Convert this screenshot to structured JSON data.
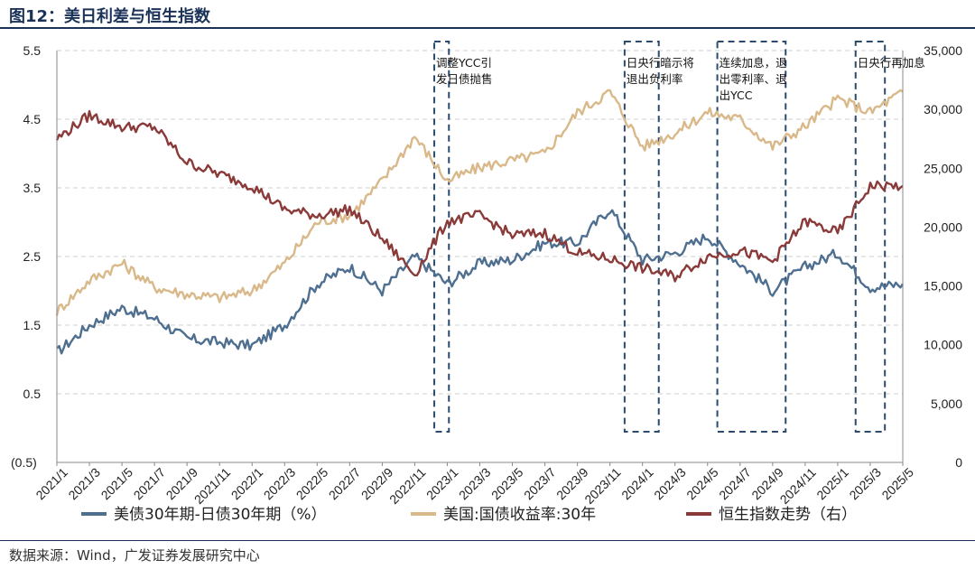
{
  "title": "图12：美日利差与恒生指数",
  "source": "数据来源：Wind，广发证券发展研究中心",
  "colors": {
    "spread": "#4f6f90",
    "ust30": "#d9b98a",
    "hsi": "#8b3a3a",
    "box": "#2b4a6e",
    "neg_label": "#cc0000"
  },
  "chart_data": {
    "type": "line",
    "x_labels": [
      "2021/1",
      "2021/3",
      "2021/5",
      "2021/7",
      "2021/9",
      "2021/11",
      "2022/1",
      "2022/3",
      "2022/5",
      "2022/7",
      "2022/9",
      "2022/11",
      "2023/1",
      "2023/3",
      "2023/5",
      "2023/7",
      "2023/9",
      "2023/11",
      "2024/1",
      "2024/3",
      "2024/5",
      "2024/7",
      "2024/9",
      "2024/11",
      "2025/1",
      "2025/3",
      "2025/5"
    ],
    "y_left": {
      "min": -0.5,
      "max": 5.5,
      "ticks": [
        "(0.5)",
        "0.5",
        "1.5",
        "2.5",
        "3.5",
        "4.5",
        "5.5"
      ]
    },
    "y_right": {
      "min": 0,
      "max": 35000,
      "ticks": [
        "0",
        "5,000",
        "10,000",
        "15,000",
        "20,000",
        "25,000",
        "30,000",
        "35,000"
      ]
    },
    "series": [
      {
        "name": "美债30年期-日债30年期（%）",
        "axis": "left",
        "values": [
          1.1,
          1.5,
          1.75,
          1.6,
          1.3,
          1.25,
          1.2,
          1.5,
          2.1,
          2.35,
          2.0,
          2.5,
          2.1,
          2.4,
          2.45,
          2.7,
          2.7,
          3.2,
          2.45,
          2.55,
          2.8,
          2.4,
          2.0,
          2.35,
          2.55,
          2.05,
          2.1
        ]
      },
      {
        "name": "美国:国债收益率:30年",
        "axis": "left",
        "values": [
          1.7,
          2.15,
          2.4,
          2.05,
          1.95,
          1.9,
          2.0,
          2.4,
          3.0,
          3.1,
          3.6,
          4.25,
          3.6,
          3.8,
          3.9,
          4.0,
          4.6,
          4.9,
          4.1,
          4.3,
          4.6,
          4.5,
          4.1,
          4.4,
          4.8,
          4.6,
          4.9
        ]
      },
      {
        "name": "恒生指数走势（右）",
        "axis": "right",
        "values": [
          27500,
          29500,
          28500,
          28500,
          25500,
          24500,
          23500,
          21500,
          21000,
          21500,
          19000,
          16000,
          20500,
          21000,
          19300,
          19500,
          17800,
          17300,
          16500,
          15800,
          17500,
          18000,
          17100,
          20500,
          19500,
          23500,
          23500
        ]
      }
    ],
    "annotations": [
      {
        "label": [
          "调整YCC引",
          "发日债抛售"
        ],
        "start": 11.6,
        "end": 12.05
      },
      {
        "label": [
          "日央行暗示将",
          "退出负利率"
        ],
        "start": 17.45,
        "end": 18.5
      },
      {
        "label": [
          "连续加息，退",
          "出零利率、退",
          "出YCC"
        ],
        "start": 20.3,
        "end": 22.4
      },
      {
        "label": [
          "日央行再加息"
        ],
        "start": 24.55,
        "end": 25.45
      }
    ]
  }
}
